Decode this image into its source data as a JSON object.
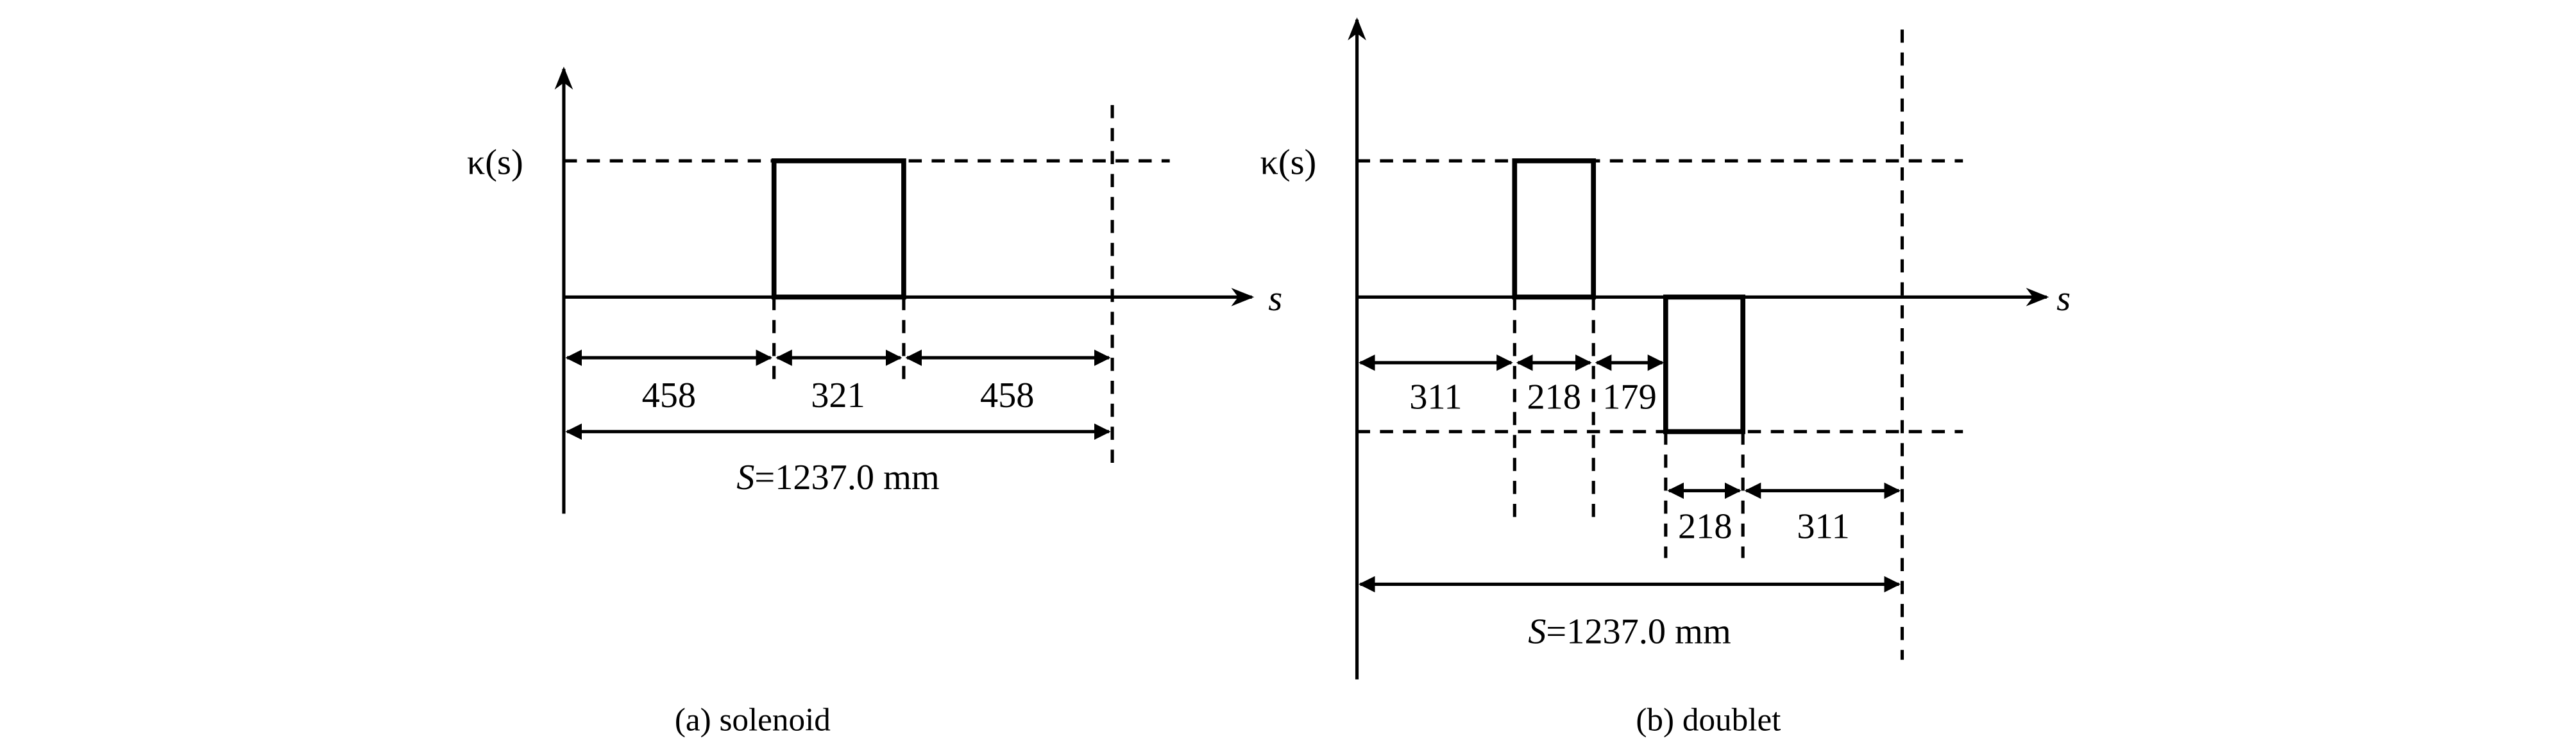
{
  "panels": {
    "solenoid": {
      "caption": "(a) solenoid",
      "y_label": "κ(s)",
      "x_label": "s",
      "segments": [
        "458",
        "321",
        "458"
      ],
      "total_prefix": "S",
      "total_value": "=1237.0 mm"
    },
    "doublet": {
      "caption": "(b) doublet",
      "y_label": "κ(s)",
      "x_label": "s",
      "segments_top": [
        "311",
        "218",
        "179"
      ],
      "segments_bottom": [
        "218",
        "311"
      ],
      "total_prefix": "S",
      "total_value": "=1237.0 mm"
    }
  }
}
